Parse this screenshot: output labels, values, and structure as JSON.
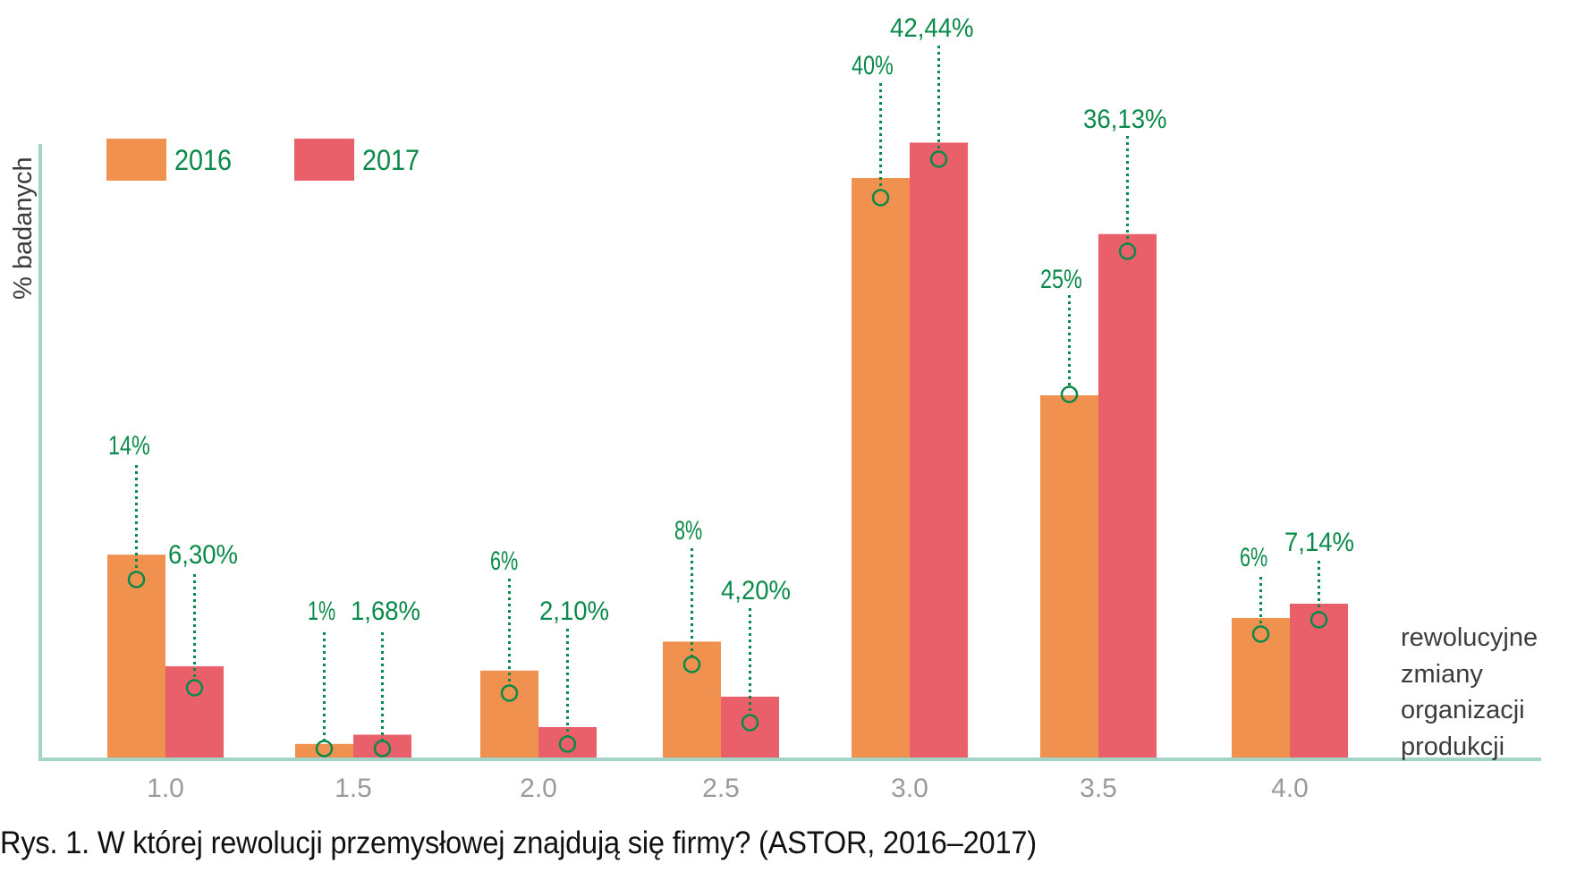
{
  "chart_data": {
    "type": "bar",
    "title": "",
    "xlabel": "rewolucyjne zmiany organizacji produkcji",
    "ylabel": "% badanych",
    "categories": [
      "1.0",
      "1.5",
      "2.0",
      "2.5",
      "3.0",
      "3.5",
      "4.0"
    ],
    "series": [
      {
        "name": "2016",
        "color": "#F0914F",
        "values": [
          14,
          1,
          6,
          8,
          40,
          25,
          6
        ],
        "labels": [
          "14%",
          "1%",
          "6%",
          "8%",
          "40%",
          "25%",
          "6%"
        ]
      },
      {
        "name": "2017",
        "color": "#E95F6A",
        "values": [
          6.3,
          1.68,
          2.1,
          4.2,
          42.44,
          36.13,
          7.14
        ],
        "labels": [
          "6,30%",
          "1,68%",
          "2,10%",
          "4,20%",
          "42,44%",
          "36,13%",
          "7,14%"
        ]
      }
    ],
    "legend": {
      "position": "top-left",
      "entries": [
        "2016",
        "2017"
      ]
    },
    "grid": false,
    "label_color": "#0A8A4A",
    "axis_color": "#A3D4C8"
  },
  "xaxis_note_lines": [
    "rewolucyjne",
    "zmiany",
    "organizacji",
    "produkcji"
  ],
  "caption": "Rys. 1. W której rewolucji przemysłowej znajdują się firmy? (ASTOR, 2016–2017)"
}
